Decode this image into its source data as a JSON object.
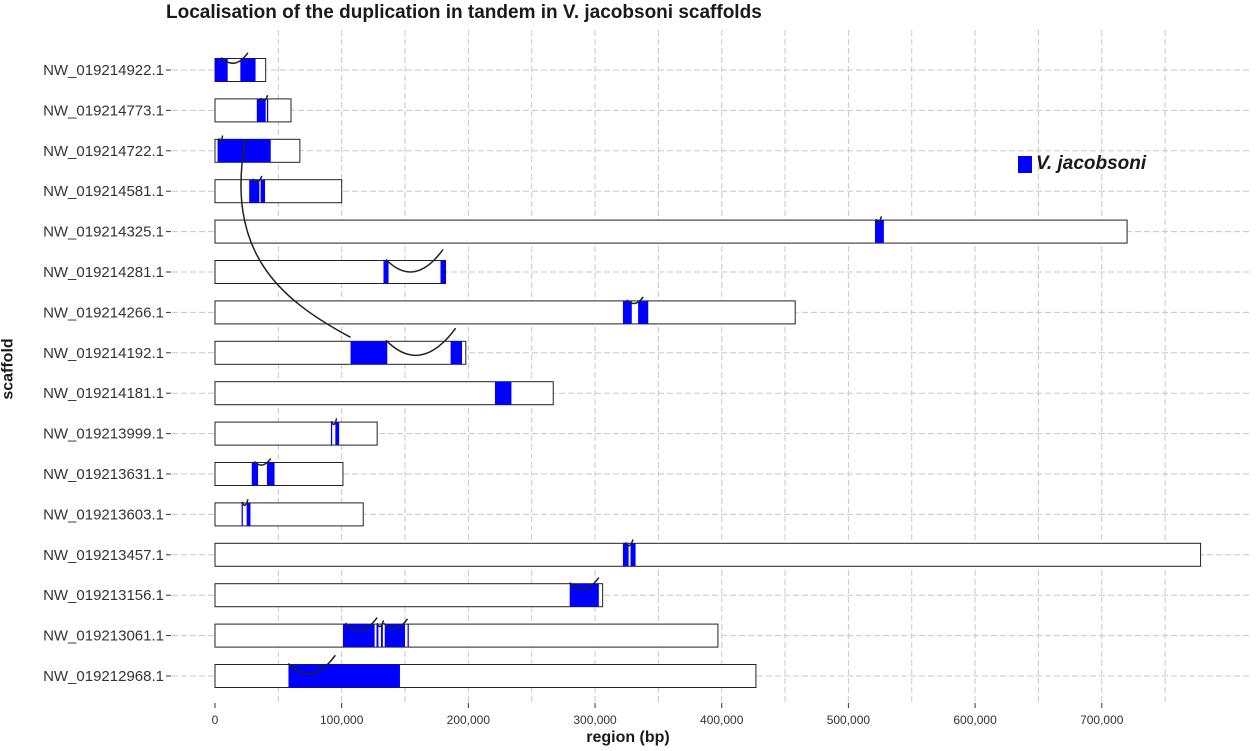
{
  "chart_data": {
    "type": "bar",
    "title": "Localisation of the duplication in tandem in V. jacobsoni scaffolds",
    "xlabel": "region (bp)",
    "ylabel": "scaffold",
    "xlim": [
      0,
      780000
    ],
    "x_ticks": [
      0,
      100000,
      200000,
      300000,
      400000,
      500000,
      600000,
      700000
    ],
    "x_tick_labels": [
      "0",
      "100,000",
      "200,000",
      "300,000",
      "400,000",
      "500,000",
      "600,000",
      "700,000"
    ],
    "grid": true,
    "legend": {
      "label": "V. jacobsoni",
      "color": "#0000ff",
      "position": "right"
    },
    "scaffolds": [
      {
        "name": "NW_019214922.1",
        "length": 40000,
        "regions": [
          [
            0,
            10000
          ],
          [
            20000,
            32000
          ]
        ]
      },
      {
        "name": "NW_019214773.1",
        "length": 60000,
        "regions": [
          [
            33000,
            40000
          ],
          [
            41000,
            42000
          ]
        ]
      },
      {
        "name": "NW_019214722.1",
        "length": 67000,
        "regions": [
          [
            2000,
            44000
          ]
        ]
      },
      {
        "name": "NW_019214581.1",
        "length": 100000,
        "regions": [
          [
            27000,
            35000
          ],
          [
            36000,
            39500
          ]
        ]
      },
      {
        "name": "NW_019214325.1",
        "length": 720000,
        "regions": [
          [
            521000,
            528000
          ]
        ]
      },
      {
        "name": "NW_019214281.1",
        "length": 182000,
        "regions": [
          [
            133000,
            137000
          ],
          [
            178000,
            182000
          ]
        ]
      },
      {
        "name": "NW_019214266.1",
        "length": 458000,
        "regions": [
          [
            322000,
            329000
          ],
          [
            334000,
            342000
          ]
        ]
      },
      {
        "name": "NW_019214192.1",
        "length": 198000,
        "regions": [
          [
            107000,
            136000
          ],
          [
            186000,
            195000
          ]
        ]
      },
      {
        "name": "NW_019214181.1",
        "length": 267000,
        "regions": [
          [
            221000,
            234000
          ]
        ]
      },
      {
        "name": "NW_019213999.1",
        "length": 128000,
        "regions": [
          [
            91500,
            92500
          ],
          [
            95000,
            98000
          ]
        ]
      },
      {
        "name": "NW_019213631.1",
        "length": 101000,
        "regions": [
          [
            29000,
            34000
          ],
          [
            41000,
            47000
          ]
        ]
      },
      {
        "name": "NW_019213603.1",
        "length": 117000,
        "regions": [
          [
            21000,
            22000
          ],
          [
            25000,
            28000
          ]
        ]
      },
      {
        "name": "NW_019213457.1",
        "length": 778000,
        "regions": [
          [
            322000,
            326500
          ],
          [
            328000,
            332000
          ]
        ]
      },
      {
        "name": "NW_019213156.1",
        "length": 306000,
        "regions": [
          [
            280000,
            303000
          ]
        ]
      },
      {
        "name": "NW_019213061.1",
        "length": 397000,
        "regions": [
          [
            101000,
            126000
          ],
          [
            127500,
            129000
          ],
          [
            131000,
            132500
          ],
          [
            134000,
            150000
          ],
          [
            152000,
            153000
          ]
        ]
      },
      {
        "name": "NW_019212968.1",
        "length": 427000,
        "regions": [
          [
            58000,
            146000
          ]
        ]
      }
    ],
    "links": [
      {
        "from_scaffold": 0,
        "from_x": 5000,
        "to_scaffold": 0,
        "to_x": 26000,
        "type": "arc"
      },
      {
        "from_scaffold": 1,
        "from_x": 36000,
        "to_scaffold": 1,
        "to_x": 41500,
        "type": "arc"
      },
      {
        "from_scaffold": 2,
        "from_x": 3000,
        "to_scaffold": 2,
        "to_x": 6000,
        "type": "arc"
      },
      {
        "from_scaffold": 3,
        "from_x": 30000,
        "to_scaffold": 3,
        "to_x": 37000,
        "type": "arc"
      },
      {
        "from_scaffold": 4,
        "from_x": 522000,
        "to_scaffold": 4,
        "to_x": 526000,
        "type": "arc"
      },
      {
        "from_scaffold": 5,
        "from_x": 135000,
        "to_scaffold": 5,
        "to_x": 180000,
        "type": "arc"
      },
      {
        "from_scaffold": 6,
        "from_x": 325000,
        "to_scaffold": 6,
        "to_x": 338000,
        "type": "arc"
      },
      {
        "from_scaffold": 7,
        "from_x": 135000,
        "to_scaffold": 7,
        "to_x": 190000,
        "type": "arc"
      },
      {
        "from_scaffold": 9,
        "from_x": 92000,
        "to_scaffold": 9,
        "to_x": 96000,
        "type": "arc"
      },
      {
        "from_scaffold": 10,
        "from_x": 31000,
        "to_scaffold": 10,
        "to_x": 44000,
        "type": "arc"
      },
      {
        "from_scaffold": 11,
        "from_x": 21500,
        "to_scaffold": 11,
        "to_x": 26000,
        "type": "arc"
      },
      {
        "from_scaffold": 12,
        "from_x": 324000,
        "to_scaffold": 12,
        "to_x": 330000,
        "type": "arc"
      },
      {
        "from_scaffold": 13,
        "from_x": 280000,
        "to_scaffold": 13,
        "to_x": 303000,
        "type": "arc"
      },
      {
        "from_scaffold": 14,
        "from_x": 103000,
        "to_scaffold": 14,
        "to_x": 128000,
        "type": "arc"
      },
      {
        "from_scaffold": 14,
        "from_x": 128000,
        "to_scaffold": 14,
        "to_x": 133000,
        "type": "arc"
      },
      {
        "from_scaffold": 14,
        "from_x": 133000,
        "to_scaffold": 14,
        "to_x": 152000,
        "type": "arc"
      },
      {
        "from_scaffold": 15,
        "from_x": 58000,
        "to_scaffold": 15,
        "to_x": 95000,
        "type": "arc"
      },
      {
        "from_scaffold": 2,
        "from_x": 24000,
        "to_scaffold": 7,
        "to_x": 107000,
        "type": "long"
      }
    ]
  }
}
